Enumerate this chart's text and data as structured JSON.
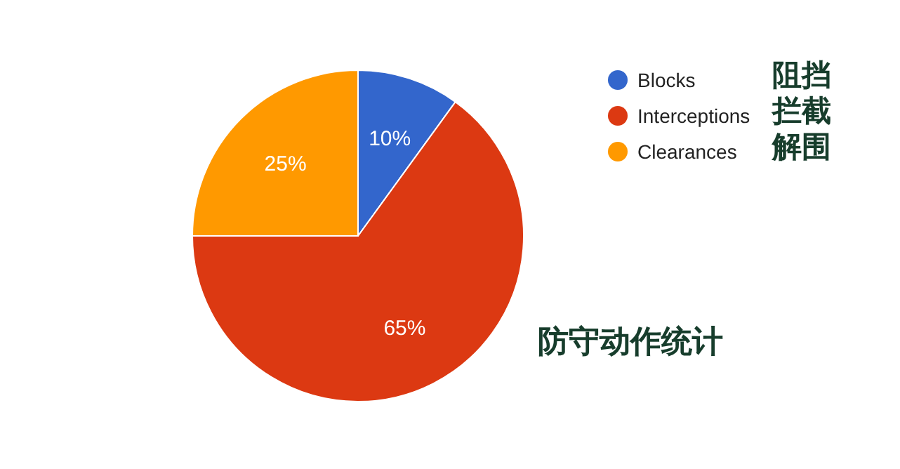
{
  "chart_data": {
    "type": "pie",
    "title": "防守动作统计",
    "categories": [
      "Blocks",
      "Interceptions",
      "Clearances"
    ],
    "values": [
      10,
      65,
      25
    ],
    "colors": [
      "#3366cc",
      "#dc3912",
      "#ff9900"
    ],
    "value_labels": [
      "10%",
      "65%",
      "25%"
    ],
    "legend": "right",
    "annotations": [
      "阻挡",
      "拦截",
      "解围"
    ]
  }
}
